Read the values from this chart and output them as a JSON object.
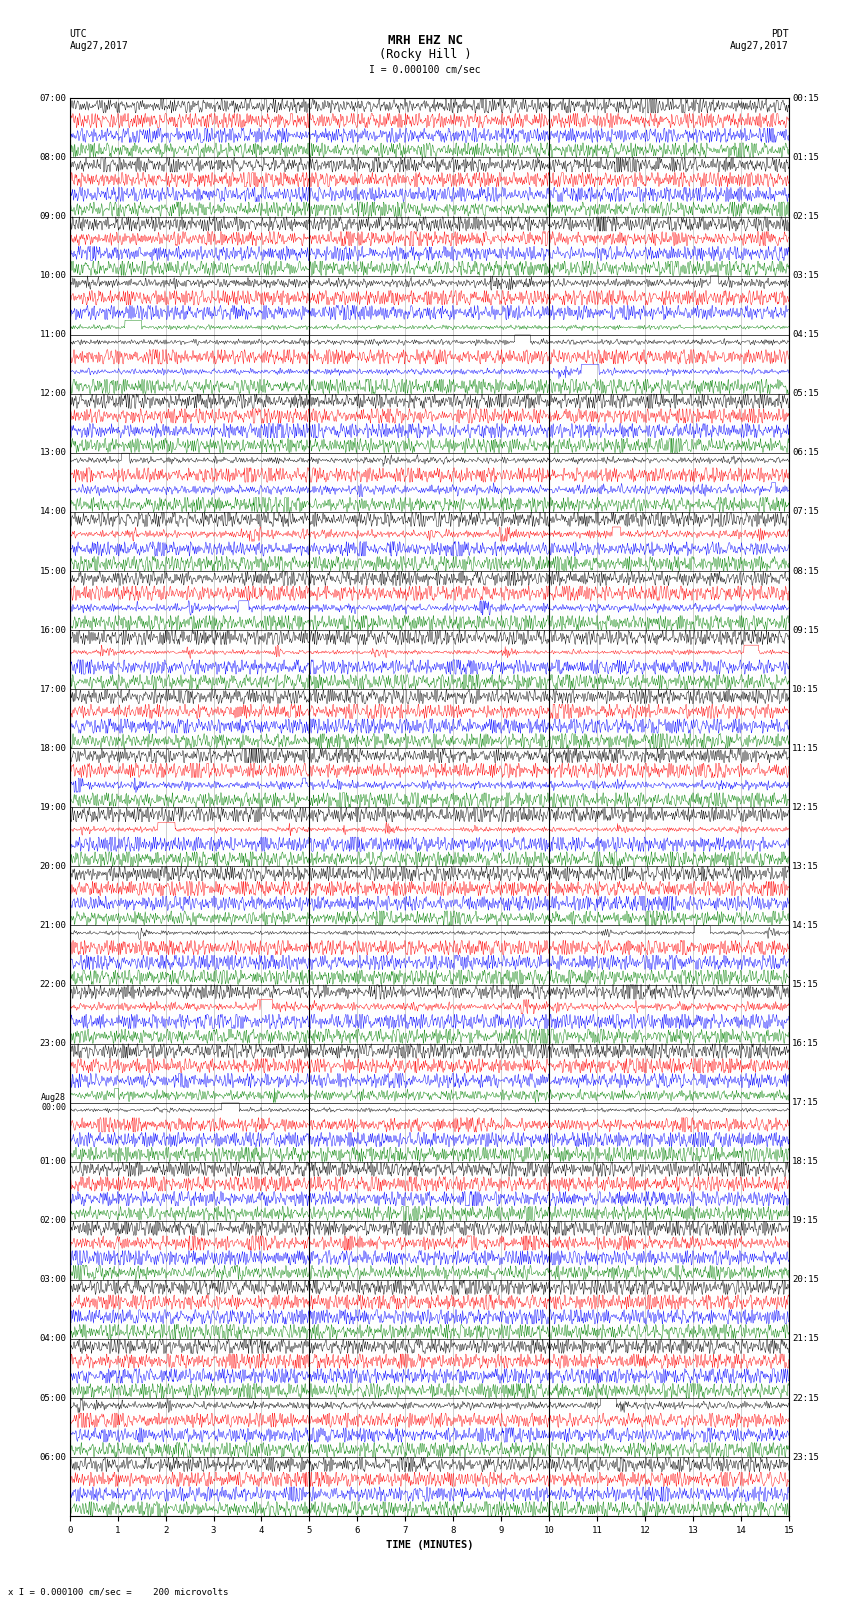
{
  "title_line1": "MRH EHZ NC",
  "title_line2": "(Rocky Hill )",
  "scale_label": "I = 0.000100 cm/sec",
  "utc_label": "UTC\nAug27,2017",
  "pdt_label": "PDT\nAug27,2017",
  "xlabel": "TIME (MINUTES)",
  "footnote": "x I = 0.000100 cm/sec =    200 microvolts",
  "utc_times": [
    "07:00",
    "08:00",
    "09:00",
    "10:00",
    "11:00",
    "12:00",
    "13:00",
    "14:00",
    "15:00",
    "16:00",
    "17:00",
    "18:00",
    "19:00",
    "20:00",
    "21:00",
    "22:00",
    "23:00",
    "Aug28\n00:00",
    "01:00",
    "02:00",
    "03:00",
    "04:00",
    "05:00",
    "06:00"
  ],
  "pdt_times": [
    "00:15",
    "01:15",
    "02:15",
    "03:15",
    "04:15",
    "05:15",
    "06:15",
    "07:15",
    "08:15",
    "09:15",
    "10:15",
    "11:15",
    "12:15",
    "13:15",
    "14:15",
    "15:15",
    "16:15",
    "17:15",
    "18:15",
    "19:15",
    "20:15",
    "21:15",
    "22:15",
    "23:15"
  ],
  "colors_order": [
    "black",
    "red",
    "blue",
    "green"
  ],
  "n_rows": 24,
  "minutes_per_row": 15,
  "bg_color": "#ffffff",
  "title_fontsize": 9,
  "label_fontsize": 7,
  "tick_fontsize": 6.5
}
